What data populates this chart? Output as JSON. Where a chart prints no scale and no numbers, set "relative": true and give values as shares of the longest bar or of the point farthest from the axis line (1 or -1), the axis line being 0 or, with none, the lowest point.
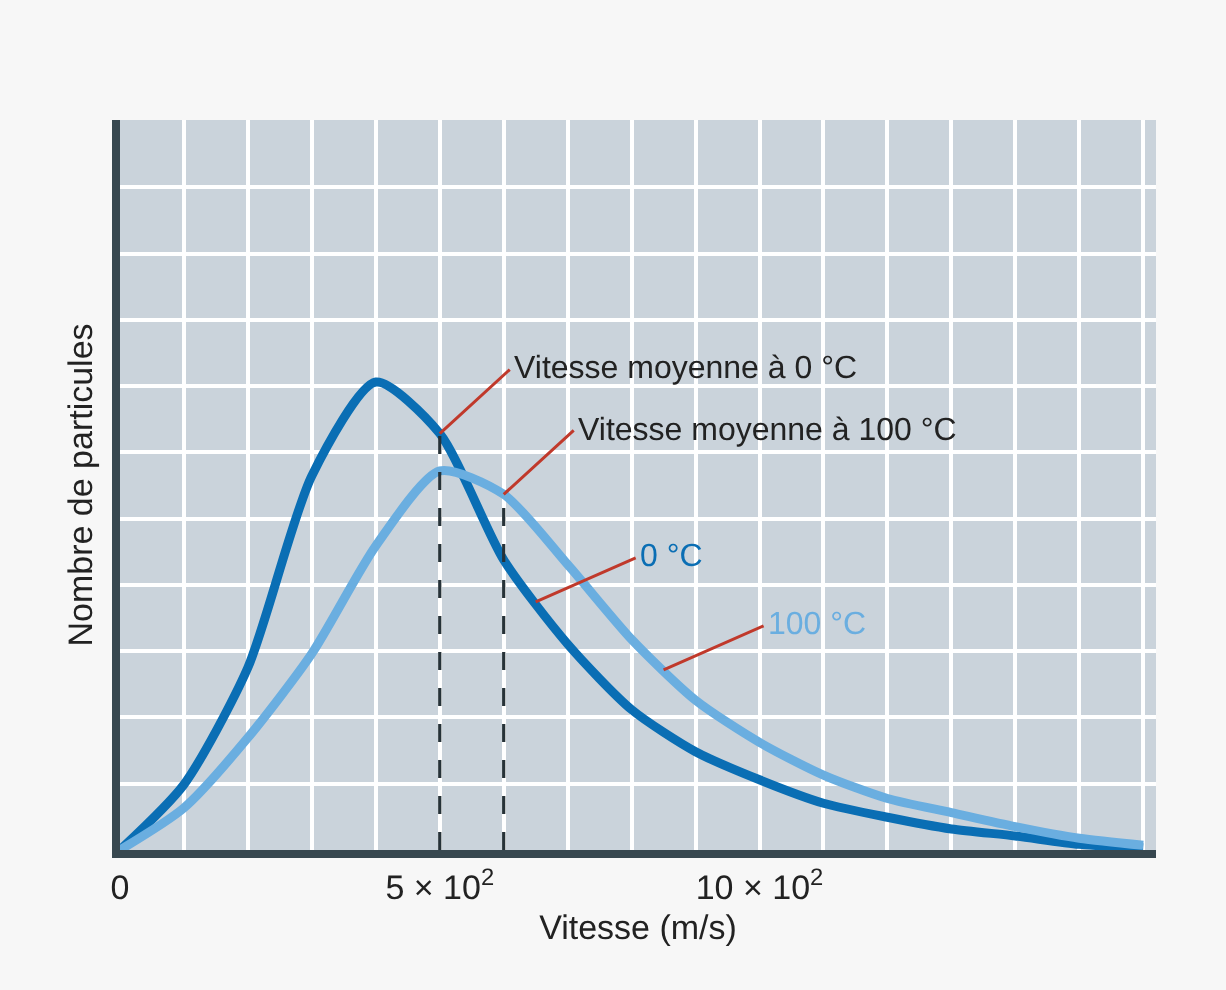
{
  "chart_data": {
    "type": "line",
    "relative": true,
    "xlabel": "Vitesse (m/s)",
    "ylabel": "Nombre de particules",
    "x": [
      0,
      100,
      200,
      300,
      400,
      500,
      600,
      700,
      800,
      900,
      1000,
      1100,
      1200,
      1300,
      1400,
      1500,
      1600
    ],
    "xlim": [
      0,
      1620
    ],
    "xticks": [
      0,
      {
        "value": 500,
        "label": "5 × 10$^{2}$"
      },
      {
        "value": 1000,
        "label": "10 × 10$^{2}$"
      }
    ],
    "series": [
      {
        "name": "0 °C",
        "color": "#0a6eb4",
        "values": [
          0,
          0.14,
          0.39,
          0.8,
          1.0,
          0.89,
          0.62,
          0.44,
          0.3,
          0.21,
          0.15,
          0.1,
          0.07,
          0.045,
          0.03,
          0.012,
          0.005
        ]
      },
      {
        "name": "100 °C",
        "color": "#6aaee0",
        "values": [
          0,
          0.09,
          0.24,
          0.42,
          0.65,
          0.81,
          0.76,
          0.61,
          0.45,
          0.32,
          0.23,
          0.16,
          0.11,
          0.08,
          0.05,
          0.025,
          0.01
        ]
      }
    ],
    "ref_lines": [
      {
        "axis": "x",
        "value": 500,
        "label": "Vitesse moyenne à 0 °C",
        "color": "#263238",
        "line_style": "dashed"
      },
      {
        "axis": "x",
        "value": 600,
        "label": "Vitesse moyenne à 100 °C",
        "color": "#263238",
        "line_style": "dashed"
      }
    ],
    "grid": true,
    "legend": false,
    "marker": "none",
    "line_style": "solid"
  }
}
